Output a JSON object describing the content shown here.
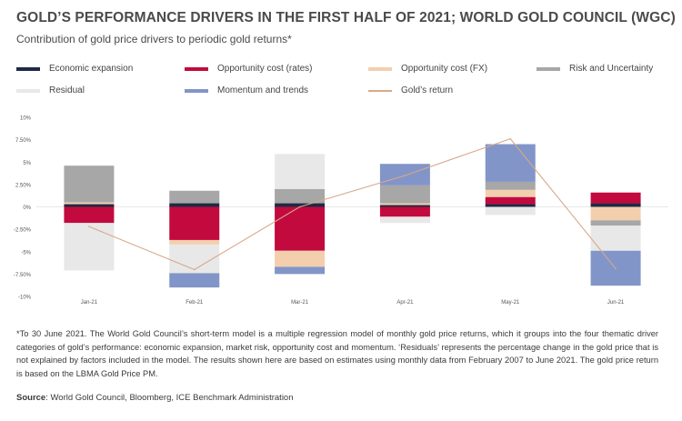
{
  "header": {
    "title": "GOLD’S PERFORMANCE DRIVERS IN THE FIRST HALF OF 2021; WORLD GOLD COUNCIL (WGC)",
    "subtitle": "Contribution of gold price drivers to periodic gold returns*"
  },
  "footer": {
    "note": "*To 30 June 2021. The World Gold Council’s short-term model is a multiple regression model of monthly gold price returns, which it groups into the four thematic driver categories of gold’s performance: economic expansion, market risk, opportunity cost and momentum. ‘Residuals’ represents the percentage change in the gold price that is not explained by factors included in the model. The results shown here are based on estimates using monthly data from February 2007 to June 2021. The gold price return is based on the LBMA Gold Price PM.",
    "source_label": "Source",
    "source_text": ": World Gold Council, Bloomberg, ICE Benchmark Administration"
  },
  "chart_data": {
    "type": "bar",
    "stacked": true,
    "categories": [
      "Jan-21",
      "Feb-21",
      "Mar-21",
      "Apr-21",
      "May-21",
      "Jun-21"
    ],
    "ylim": [
      -10,
      10
    ],
    "yticks": [
      10,
      7.5,
      5,
      2.5,
      0,
      -2.5,
      -5,
      -7.5,
      -10
    ],
    "ytick_labels": [
      "10%",
      "7.50%",
      "5%",
      "2.50%",
      "0%",
      "-2.50%",
      "-5%",
      "-7.50%",
      "-10%"
    ],
    "legend_position": "top",
    "series": [
      {
        "name": "Economic expansion",
        "color": "#1f2a44",
        "values": [
          0.3,
          0.4,
          0.4,
          0.2,
          0.3,
          0.4
        ]
      },
      {
        "name": "Opportunity cost (rates)",
        "color": "#c20a3e",
        "values": [
          -1.8,
          -3.7,
          -4.9,
          -1.1,
          0.8,
          1.2
        ]
      },
      {
        "name": "Opportunity cost (FX)",
        "color": "#f3cfae",
        "values": [
          0.2,
          -0.5,
          -1.8,
          0.2,
          0.8,
          -1.5
        ]
      },
      {
        "name": "Risk and Uncertainty",
        "color": "#a7a7a7",
        "values": [
          4.1,
          1.4,
          1.6,
          2.0,
          0.9,
          -0.6
        ]
      },
      {
        "name": "Residual",
        "color": "#e8e8e8",
        "values": [
          -5.3,
          -3.2,
          3.9,
          -0.7,
          -0.9,
          -2.8
        ]
      },
      {
        "name": "Momentum and trends",
        "color": "#8295c8",
        "values": [
          0.0,
          -1.6,
          -0.8,
          2.4,
          4.2,
          -3.9
        ]
      },
      {
        "name": "Gold’s return",
        "type": "line",
        "color": "#d7a98a",
        "values": [
          -2.2,
          -7.0,
          0.0,
          3.5,
          7.6,
          -6.9
        ]
      }
    ]
  }
}
